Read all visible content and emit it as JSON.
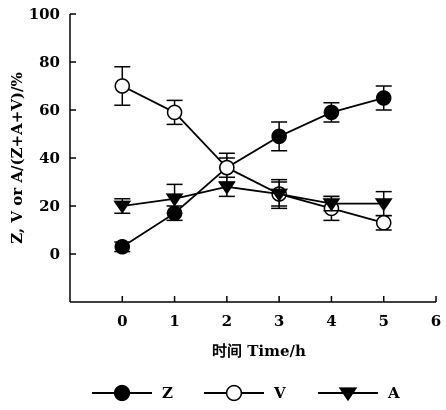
{
  "chart_data": {
    "type": "line",
    "xlabel": "时间  Time/h",
    "ylabel": "Z, V or A/(Z+A+V)/%",
    "xlim": [
      -1,
      6
    ],
    "ylim": [
      -20,
      100
    ],
    "x_ticks": [
      0,
      1,
      2,
      3,
      4,
      5,
      6
    ],
    "y_ticks": [
      0,
      20,
      40,
      60,
      80,
      100
    ],
    "legend_position": "bottom",
    "grid": false,
    "x": [
      0,
      1,
      2,
      3,
      4,
      5
    ],
    "series": [
      {
        "name": "Z",
        "marker": "filled-circle",
        "values": [
          3,
          17,
          36,
          49,
          59,
          65
        ],
        "errors": [
          2,
          3,
          4,
          6,
          4,
          5
        ]
      },
      {
        "name": "V",
        "marker": "open-circle",
        "values": [
          70,
          59,
          36,
          25,
          19,
          13
        ],
        "errors": [
          8,
          5,
          6,
          6,
          5,
          3
        ]
      },
      {
        "name": "A",
        "marker": "filled-triangle-down",
        "values": [
          20,
          23,
          28,
          25,
          21,
          21
        ],
        "errors": [
          3,
          6,
          4,
          5,
          3,
          5
        ]
      }
    ]
  }
}
